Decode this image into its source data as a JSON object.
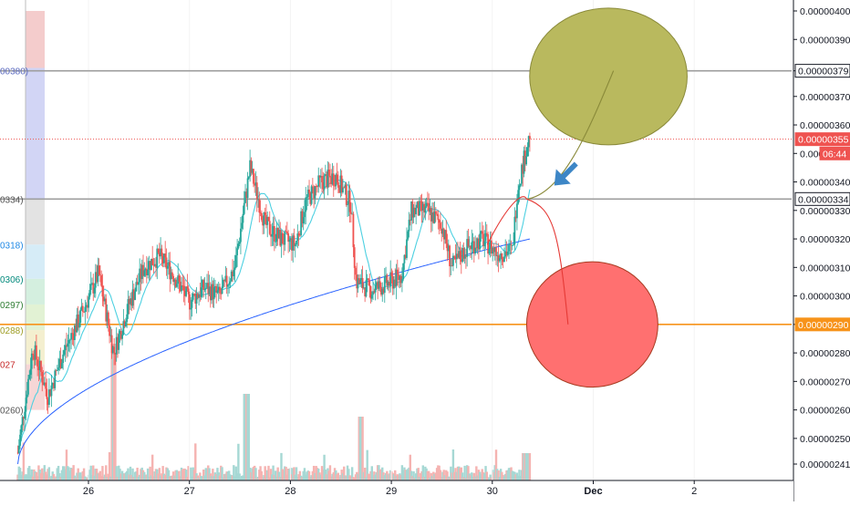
{
  "chart_data": {
    "type": "candlestick",
    "symbol_timeframe": "unknown",
    "x_tick_labels": [
      "26",
      "27",
      "28",
      "29",
      "30",
      "Dec",
      "2"
    ],
    "y_range": [
      2.383e-06,
      4.045e-06
    ],
    "y_tick_labels": [
      "0.00000400",
      "0.00000390",
      "0.00000379",
      "0.00000370",
      "0.00000360",
      "0.00000350",
      "0.00000340",
      "0.00000330",
      "0.00000320",
      "0.00000310",
      "0.00000300",
      "0.00000290",
      "0.00000280",
      "0.00000270",
      "0.00000260",
      "0.00000250",
      "0.00000241"
    ],
    "y_tick_values": [
      4e-06,
      3.9e-06,
      3.79e-06,
      3.7e-06,
      3.6e-06,
      3.5e-06,
      3.4e-06,
      3.3e-06,
      3.2e-06,
      3.1e-06,
      3e-06,
      2.9e-06,
      2.8e-06,
      2.7e-06,
      2.6e-06,
      2.5e-06,
      2.41e-06
    ],
    "price_badges": [
      {
        "label": "0.00000379",
        "value": 3.79e-06,
        "bg": "#ffffff",
        "fg": "#131722",
        "border": "#131722"
      },
      {
        "label": "0.00000355",
        "value": 3.55e-06,
        "bg": "#ef5350",
        "fg": "#ffffff",
        "border": "#ef5350"
      },
      {
        "label": "06:44",
        "value": 3.5e-06,
        "bg": "#ef5350",
        "fg": "#ffffff",
        "border": "#ef5350"
      },
      {
        "label": "0.00000334",
        "value": 3.34e-06,
        "bg": "#ffffff",
        "fg": "#131722",
        "border": "#131722"
      },
      {
        "label": "0.00000290",
        "value": 2.9e-06,
        "bg": "#f7931a",
        "fg": "#ffffff",
        "border": "#f7931a"
      }
    ],
    "horizontal_lines": [
      {
        "value": 3.79e-06,
        "color": "#9e9e9e",
        "style": "solid"
      },
      {
        "value": 3.55e-06,
        "color": "#ef5350",
        "style": "dotted"
      },
      {
        "value": 3.34e-06,
        "color": "#9e9e9e",
        "style": "solid"
      },
      {
        "value": 2.9e-06,
        "color": "#f7931a",
        "style": "solid"
      }
    ],
    "left_clipped_labels": [
      {
        "label": "00380)",
        "value": 3.79e-06,
        "color": "#5c6bc0"
      },
      {
        "label": "0334)",
        "value": 3.34e-06,
        "color": "#555555"
      },
      {
        "label": "0318)",
        "value": 3.18e-06,
        "color": "#1e88e5"
      },
      {
        "label": "0306)",
        "value": 3.06e-06,
        "color": "#00897b"
      },
      {
        "label": "0297)",
        "value": 2.97e-06,
        "color": "#2e7d32"
      },
      {
        "label": "0288)",
        "value": 2.88e-06,
        "color": "#9e9d24"
      },
      {
        "label": "027",
        "value": 2.76e-06,
        "color": "#c62828"
      },
      {
        "label": "0260)",
        "value": 2.6e-06,
        "color": "#555555"
      }
    ],
    "fib_bands": [
      {
        "from": 3.8e-06,
        "to": 4e-06,
        "color": "#f4cccc"
      },
      {
        "from": 3.34e-06,
        "to": 3.8e-06,
        "color": "#d2d5f5"
      },
      {
        "from": 3.18e-06,
        "to": 3.34e-06,
        "color": "#e3e3e3"
      },
      {
        "from": 3.06e-06,
        "to": 3.18e-06,
        "color": "#d6ecf7"
      },
      {
        "from": 2.97e-06,
        "to": 3.06e-06,
        "color": "#d4efdf"
      },
      {
        "from": 2.88e-06,
        "to": 2.97e-06,
        "color": "#e2f2d4"
      },
      {
        "from": 2.76e-06,
        "to": 2.88e-06,
        "color": "#f4efcf"
      },
      {
        "from": 2.6e-06,
        "to": 2.76e-06,
        "color": "#f6d6d6"
      }
    ],
    "price_anchors": [
      [
        25.3,
        2.45e-06
      ],
      [
        25.45,
        2.82e-06
      ],
      [
        25.6,
        2.65e-06
      ],
      [
        25.75,
        2.8e-06
      ],
      [
        25.95,
        2.95e-06
      ],
      [
        26.1,
        3.08e-06
      ],
      [
        26.25,
        2.8e-06
      ],
      [
        26.4,
        2.97e-06
      ],
      [
        26.55,
        3.1e-06
      ],
      [
        26.7,
        3.14e-06
      ],
      [
        26.85,
        3.07e-06
      ],
      [
        27.0,
        2.98e-06
      ],
      [
        27.15,
        3.03e-06
      ],
      [
        27.3,
        3e-06
      ],
      [
        27.45,
        3.1e-06
      ],
      [
        27.6,
        3.45e-06
      ],
      [
        27.75,
        3.25e-06
      ],
      [
        27.9,
        3.2e-06
      ],
      [
        28.05,
        3.18e-06
      ],
      [
        28.15,
        3.33e-06
      ],
      [
        28.3,
        3.4e-06
      ],
      [
        28.45,
        3.42e-06
      ],
      [
        28.6,
        3.32e-06
      ],
      [
        28.65,
        3.05e-06
      ],
      [
        28.8,
        3.02e-06
      ],
      [
        28.95,
        3.04e-06
      ],
      [
        29.1,
        3.07e-06
      ],
      [
        29.2,
        3.3e-06
      ],
      [
        29.35,
        3.3e-06
      ],
      [
        29.5,
        3.25e-06
      ],
      [
        29.6,
        3.1e-06
      ],
      [
        29.75,
        3.17e-06
      ],
      [
        29.9,
        3.2e-06
      ],
      [
        30.05,
        3.15e-06
      ],
      [
        30.2,
        3.16e-06
      ],
      [
        30.25,
        3.38e-06
      ],
      [
        30.38,
        3.58e-06
      ]
    ],
    "sma_fast_color": "#4dd0e1",
    "sma_slow_color": "#2962ff",
    "up_color": "#26a69a",
    "down_color": "#ef5350",
    "annotations": [
      {
        "type": "ellipse",
        "fill": "#b9b95e",
        "stroke": "#8a8a3a",
        "label": "",
        "center": [
          31.15,
          3.77e-06
        ],
        "radius_days": 0.78,
        "radius_value": 2.4e-07
      },
      {
        "type": "ellipse",
        "fill": "#ff7070",
        "stroke": "#a83a20",
        "label": "",
        "center": [
          30.99,
          2.9e-06
        ],
        "radius_days": 0.65,
        "radius_value": 2.2e-07
      },
      {
        "type": "arrow",
        "color": "#3d86c6",
        "direction": "down-left",
        "at": [
          30.65,
          3.4e-06
        ]
      }
    ]
  }
}
